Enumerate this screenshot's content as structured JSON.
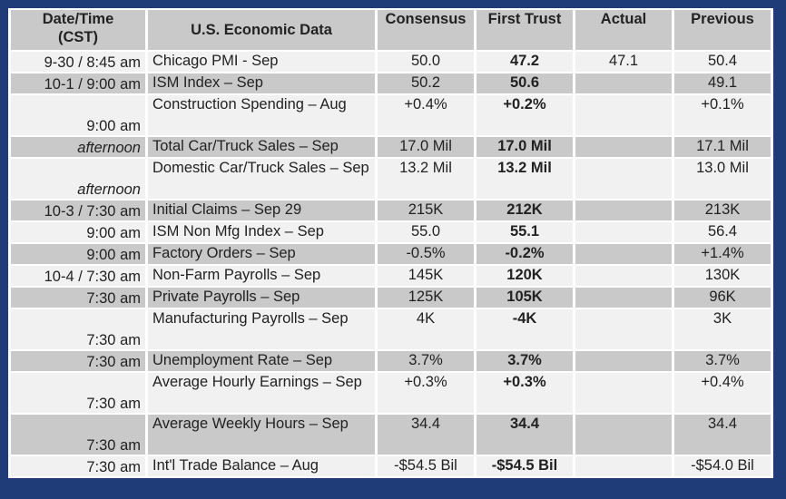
{
  "headers": {
    "datetime": "Date/Time\n(CST)",
    "econ": "U.S. Economic Data",
    "consensus": "Consensus",
    "first_trust": "First Trust",
    "actual": "Actual",
    "previous": "Previous"
  },
  "colors": {
    "frame": "#1f3c78",
    "shaded": "#c9c9c9",
    "plain": "#f1f1f1",
    "actual_text": "#cc1f2b"
  },
  "rows": [
    {
      "time": "9-30 / 8:45 am",
      "name": "Chicago PMI - Sep",
      "consensus": "50.0",
      "first_trust": "47.2",
      "actual": "47.1",
      "previous": "50.4"
    },
    {
      "time": "10-1 / 9:00 am",
      "name": "ISM Index – Sep",
      "consensus": "50.2",
      "first_trust": "50.6",
      "actual": "",
      "previous": "49.1"
    },
    {
      "time": "9:00 am",
      "name": "Construction Spending – Aug",
      "consensus": "+0.4%",
      "first_trust": "+0.2%",
      "actual": "",
      "previous": "+0.1%"
    },
    {
      "time": "afternoon",
      "name": "Total Car/Truck Sales – Sep",
      "consensus": "17.0 Mil",
      "first_trust": "17.0 Mil",
      "actual": "",
      "previous": "17.1 Mil"
    },
    {
      "time": "afternoon",
      "name": "Domestic Car/Truck Sales – Sep",
      "consensus": "13.2 Mil",
      "first_trust": "13.2 Mil",
      "actual": "",
      "previous": "13.0 Mil"
    },
    {
      "time": "10-3 / 7:30 am",
      "name": "Initial Claims – Sep 29",
      "consensus": "215K",
      "first_trust": "212K",
      "actual": "",
      "previous": "213K"
    },
    {
      "time": "9:00 am",
      "name": "ISM Non Mfg Index – Sep",
      "consensus": "55.0",
      "first_trust": "55.1",
      "actual": "",
      "previous": "56.4"
    },
    {
      "time": "9:00 am",
      "name": "Factory Orders – Sep",
      "consensus": "-0.5%",
      "first_trust": "-0.2%",
      "actual": "",
      "previous": "+1.4%"
    },
    {
      "time": "10-4 / 7:30 am",
      "name": "Non-Farm Payrolls – Sep",
      "consensus": "145K",
      "first_trust": "120K",
      "actual": "",
      "previous": "130K"
    },
    {
      "time": "7:30 am",
      "name": "Private Payrolls – Sep",
      "consensus": "125K",
      "first_trust": "105K",
      "actual": "",
      "previous": "96K"
    },
    {
      "time": "7:30 am",
      "name": "Manufacturing Payrolls – Sep",
      "consensus": "4K",
      "first_trust": "-4K",
      "actual": "",
      "previous": "3K"
    },
    {
      "time": "7:30 am",
      "name": "Unemployment Rate – Sep",
      "consensus": "3.7%",
      "first_trust": "3.7%",
      "actual": "",
      "previous": "3.7%"
    },
    {
      "time": "7:30 am",
      "name": "Average Hourly Earnings – Sep",
      "consensus": "+0.3%",
      "first_trust": "+0.3%",
      "actual": "",
      "previous": "+0.4%"
    },
    {
      "time": "7:30 am",
      "name": "Average Weekly Hours – Sep",
      "consensus": "34.4",
      "first_trust": "34.4",
      "actual": "",
      "previous": "34.4"
    },
    {
      "time": "7:30 am",
      "name": "Int'l Trade Balance – Aug",
      "consensus": "-$54.5 Bil",
      "first_trust": "-$54.5 Bil",
      "actual": "",
      "previous": "-$54.0 Bil"
    }
  ]
}
